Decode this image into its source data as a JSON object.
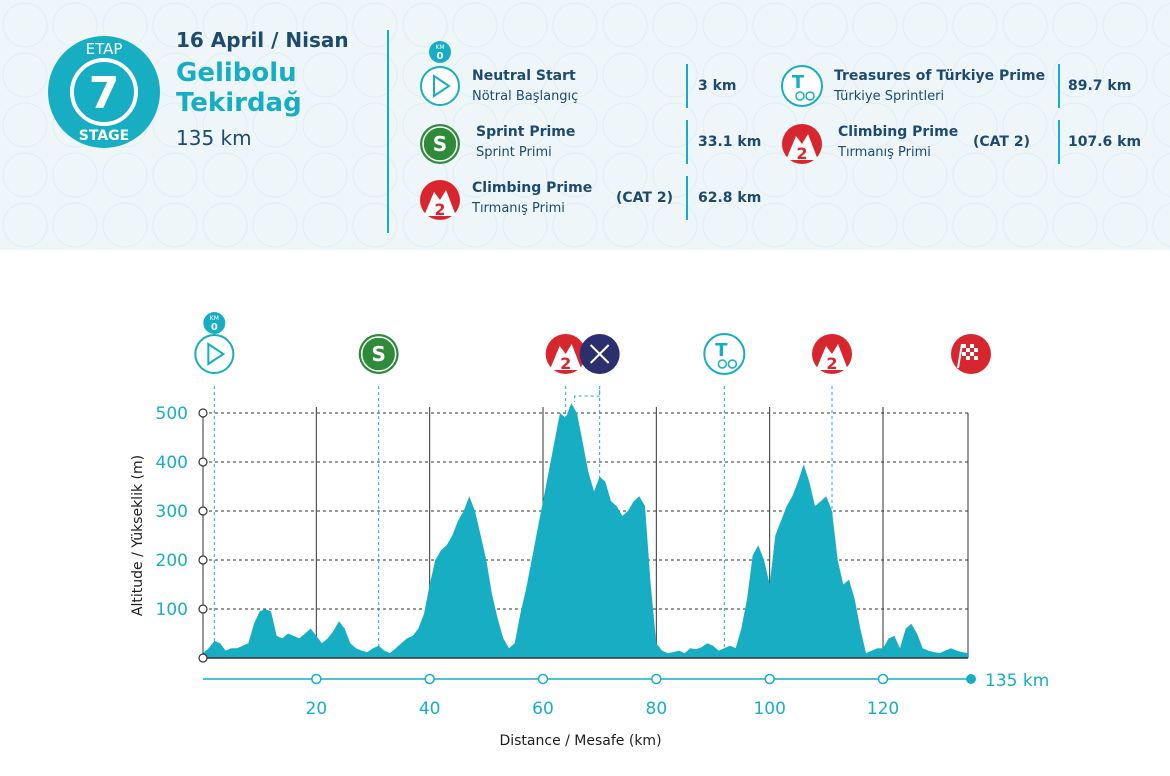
{
  "stage": {
    "etap_label": "ETAP",
    "number": "7",
    "stage_label": "STAGE",
    "date": "16 April / Nisan",
    "route_line1": "Gelibolu",
    "route_line2": "Tekirdağ",
    "distance": "135 km"
  },
  "legend": [
    {
      "title": "Neutral Start",
      "subtitle": "Nötral Başlangıç",
      "category": "",
      "km": "3 km",
      "icon": "neutral-start-icon",
      "icon_top_text": "KM",
      "icon_top_value": "0"
    },
    {
      "title": "Sprint Prime",
      "subtitle": "Sprint Primi",
      "category": "",
      "km": "33.1 km",
      "icon": "sprint-icon",
      "icon_text": "S"
    },
    {
      "title": "Climbing Prime",
      "subtitle": "Tırmanış Primi",
      "category": "(CAT 2)",
      "km": "62.8 km",
      "icon": "climb-icon",
      "icon_text": "2"
    },
    {
      "title": "Treasures of Türkiye Prime",
      "subtitle": "Türkiye Sprintleri",
      "category": "",
      "km": "89.7 km",
      "icon": "treasures-icon",
      "icon_text": "T"
    },
    {
      "title": "Climbing Prime",
      "subtitle": "Tırmanış Primi",
      "category": "(CAT 2)",
      "km": "107.6 km",
      "icon": "climb-icon",
      "icon_text": "2"
    }
  ],
  "colors": {
    "accent": "#17aec4",
    "navy": "#1d4a6e",
    "sprint_green": "#2e8b3a",
    "climb_red": "#d8262e",
    "feed_navy": "#2b2f6e",
    "profile_fill": "#17aec4"
  },
  "chart_data": {
    "type": "area",
    "xlabel": "Distance / Mesafe  (km)",
    "ylabel": "Altitude / Yükseklik (m)",
    "xlim": [
      0,
      135
    ],
    "ylim": [
      0,
      500
    ],
    "x_ticks": [
      20,
      40,
      60,
      80,
      100,
      120
    ],
    "y_ticks": [
      100,
      200,
      300,
      400,
      500
    ],
    "end_label": "135 km",
    "grid": true,
    "series": [
      {
        "x": [
          0,
          1,
          2,
          3,
          4,
          5,
          6,
          7,
          8,
          9,
          10,
          11,
          12,
          13,
          14,
          15,
          16,
          17,
          18,
          19,
          20,
          21,
          22,
          23,
          24,
          25,
          26,
          27,
          28,
          29,
          30,
          31,
          32,
          33,
          34,
          35,
          36,
          37,
          38,
          39,
          40,
          41,
          42,
          43,
          44,
          45,
          46,
          47,
          48,
          49,
          50,
          51,
          52,
          53,
          54,
          55,
          56,
          57,
          58,
          59,
          60,
          61,
          62,
          63,
          64,
          65,
          66,
          67,
          68,
          69,
          70,
          71,
          72,
          73,
          74,
          75,
          76,
          77,
          78,
          79,
          80,
          81,
          82,
          83,
          84,
          85,
          86,
          87,
          88,
          89,
          90,
          91,
          92,
          93,
          94,
          95,
          96,
          97,
          98,
          99,
          100,
          101,
          102,
          103,
          104,
          105,
          106,
          107,
          108,
          109,
          110,
          111,
          112,
          113,
          114,
          115,
          116,
          117,
          118,
          119,
          120,
          121,
          122,
          123,
          124,
          125,
          126,
          127,
          128,
          129,
          130,
          131,
          132,
          133,
          134,
          135
        ],
        "y": [
          10,
          20,
          35,
          30,
          15,
          20,
          20,
          25,
          30,
          70,
          95,
          100,
          95,
          45,
          40,
          50,
          45,
          40,
          50,
          60,
          45,
          30,
          40,
          55,
          75,
          60,
          30,
          20,
          15,
          12,
          20,
          25,
          15,
          10,
          20,
          30,
          40,
          45,
          60,
          90,
          150,
          200,
          220,
          230,
          250,
          280,
          300,
          330,
          300,
          250,
          200,
          130,
          80,
          40,
          20,
          30,
          90,
          140,
          200,
          260,
          320,
          380,
          440,
          500,
          490,
          520,
          500,
          440,
          380,
          340,
          370,
          360,
          320,
          310,
          290,
          300,
          320,
          330,
          310,
          150,
          30,
          15,
          10,
          12,
          15,
          10,
          20,
          18,
          22,
          30,
          25,
          15,
          20,
          25,
          20,
          60,
          120,
          210,
          230,
          200,
          150,
          250,
          280,
          310,
          330,
          360,
          395,
          360,
          310,
          320,
          330,
          300,
          200,
          150,
          160,
          120,
          60,
          10,
          15,
          20,
          20,
          40,
          45,
          20,
          60,
          70,
          50,
          20,
          15,
          12,
          10,
          15,
          20,
          15,
          12,
          10
        ]
      }
    ],
    "markers": [
      {
        "km": 2,
        "type": "start",
        "label": "KM",
        "value": "0"
      },
      {
        "km": 31,
        "type": "sprint",
        "label": "S"
      },
      {
        "km": 64,
        "type": "climb",
        "label": "2"
      },
      {
        "km": 70,
        "type": "feed"
      },
      {
        "km": 92,
        "type": "treasures",
        "label": "T"
      },
      {
        "km": 111,
        "type": "climb",
        "label": "2"
      },
      {
        "km": 135,
        "type": "finish"
      }
    ]
  }
}
